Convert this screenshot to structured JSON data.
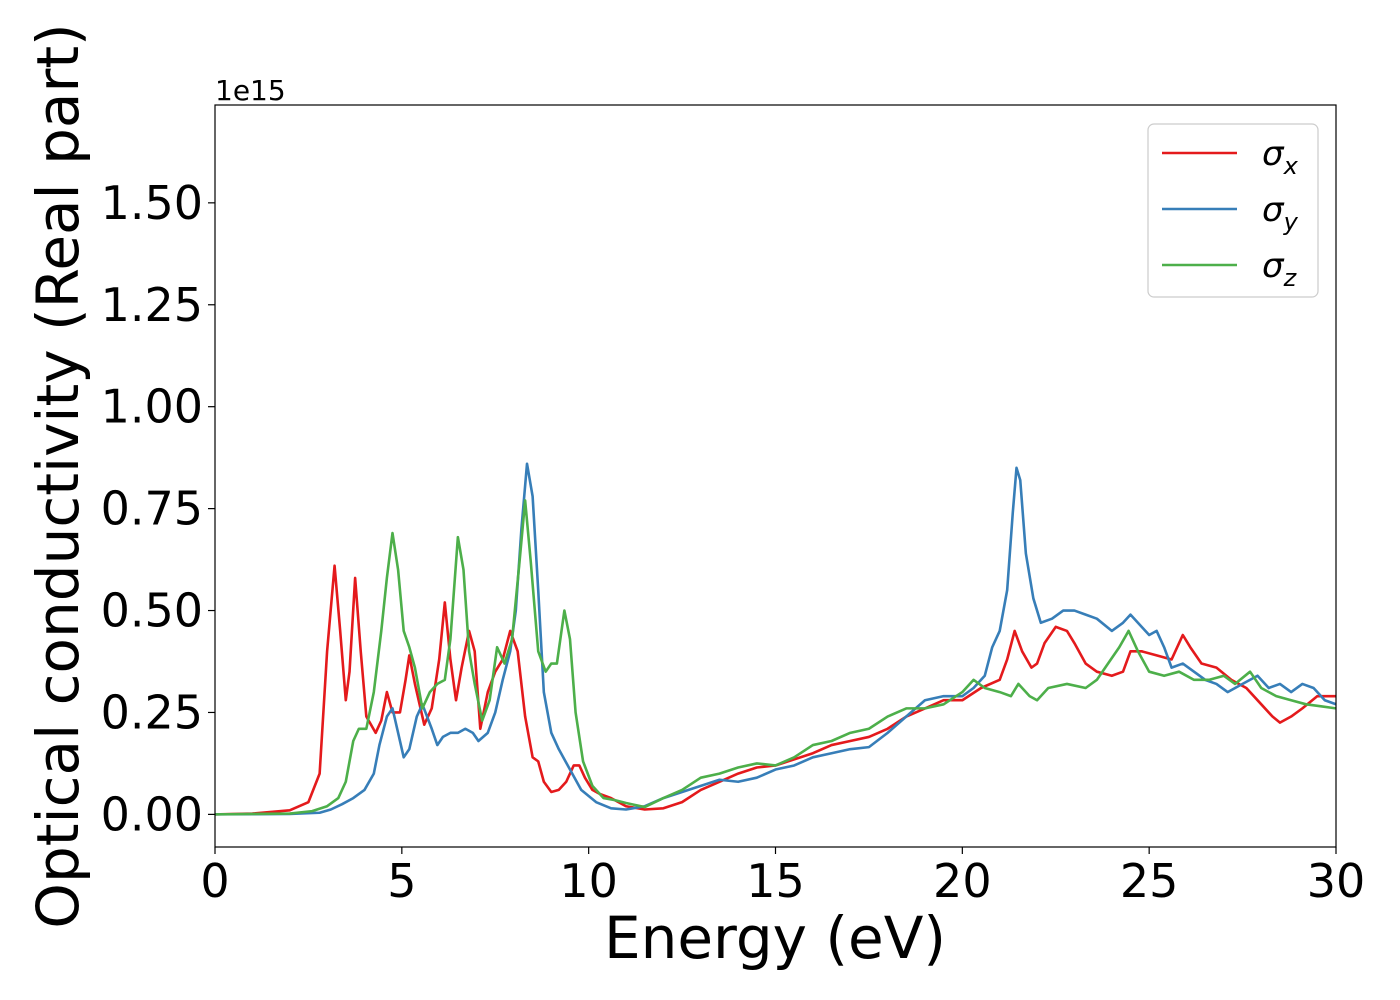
{
  "chart_data": {
    "type": "line",
    "title": "",
    "xlabel": "Energy (eV)",
    "ylabel": "Optical conductivity (Real part)",
    "y_offset_text": "1e15",
    "xlim": [
      0,
      30
    ],
    "ylim": [
      -0.08,
      1.74
    ],
    "x_ticks": [
      0,
      5,
      10,
      15,
      20,
      25,
      30
    ],
    "x_tick_labels": [
      "0",
      "5",
      "10",
      "15",
      "20",
      "25",
      "30"
    ],
    "y_ticks": [
      0,
      0.25,
      0.5,
      0.75,
      1.0,
      1.25,
      1.5
    ],
    "y_tick_labels": [
      "0.00",
      "0.25",
      "0.50",
      "0.75",
      "1.00",
      "1.25",
      "1.50"
    ],
    "grid": false,
    "legend_position": "top-right",
    "series": [
      {
        "name": "σx",
        "symbol": "σ",
        "subscript": "x",
        "color": "#e41a1c",
        "points": [
          [
            0,
            0
          ],
          [
            1,
            0.002
          ],
          [
            2,
            0.01
          ],
          [
            2.5,
            0.03
          ],
          [
            2.8,
            0.1
          ],
          [
            3.0,
            0.4
          ],
          [
            3.2,
            0.61
          ],
          [
            3.35,
            0.45
          ],
          [
            3.5,
            0.28
          ],
          [
            3.6,
            0.35
          ],
          [
            3.75,
            0.58
          ],
          [
            3.9,
            0.4
          ],
          [
            4.05,
            0.24
          ],
          [
            4.3,
            0.2
          ],
          [
            4.45,
            0.23
          ],
          [
            4.6,
            0.3
          ],
          [
            4.75,
            0.25
          ],
          [
            4.95,
            0.25
          ],
          [
            5.1,
            0.33
          ],
          [
            5.2,
            0.39
          ],
          [
            5.35,
            0.32
          ],
          [
            5.6,
            0.22
          ],
          [
            5.8,
            0.26
          ],
          [
            6.0,
            0.38
          ],
          [
            6.15,
            0.52
          ],
          [
            6.3,
            0.38
          ],
          [
            6.45,
            0.28
          ],
          [
            6.6,
            0.36
          ],
          [
            6.8,
            0.45
          ],
          [
            6.95,
            0.4
          ],
          [
            7.1,
            0.21
          ],
          [
            7.3,
            0.3
          ],
          [
            7.5,
            0.35
          ],
          [
            7.7,
            0.38
          ],
          [
            7.9,
            0.45
          ],
          [
            8.1,
            0.4
          ],
          [
            8.3,
            0.24
          ],
          [
            8.5,
            0.14
          ],
          [
            8.65,
            0.13
          ],
          [
            8.8,
            0.08
          ],
          [
            9.0,
            0.055
          ],
          [
            9.2,
            0.06
          ],
          [
            9.4,
            0.08
          ],
          [
            9.6,
            0.12
          ],
          [
            9.75,
            0.12
          ],
          [
            9.9,
            0.09
          ],
          [
            10.1,
            0.06
          ],
          [
            10.3,
            0.05
          ],
          [
            10.6,
            0.04
          ],
          [
            11.0,
            0.02
          ],
          [
            11.5,
            0.012
          ],
          [
            12.0,
            0.015
          ],
          [
            12.5,
            0.03
          ],
          [
            13.0,
            0.06
          ],
          [
            13.5,
            0.08
          ],
          [
            14.0,
            0.1
          ],
          [
            14.5,
            0.115
          ],
          [
            15.0,
            0.12
          ],
          [
            15.5,
            0.135
          ],
          [
            16.0,
            0.15
          ],
          [
            16.5,
            0.17
          ],
          [
            17.0,
            0.18
          ],
          [
            17.5,
            0.19
          ],
          [
            18.0,
            0.21
          ],
          [
            18.5,
            0.24
          ],
          [
            19.0,
            0.26
          ],
          [
            19.5,
            0.28
          ],
          [
            20.0,
            0.28
          ],
          [
            20.5,
            0.31
          ],
          [
            21.0,
            0.33
          ],
          [
            21.2,
            0.38
          ],
          [
            21.4,
            0.45
          ],
          [
            21.6,
            0.4
          ],
          [
            21.85,
            0.36
          ],
          [
            22.0,
            0.37
          ],
          [
            22.2,
            0.42
          ],
          [
            22.5,
            0.46
          ],
          [
            22.8,
            0.45
          ],
          [
            23.0,
            0.42
          ],
          [
            23.3,
            0.37
          ],
          [
            23.6,
            0.35
          ],
          [
            24.0,
            0.34
          ],
          [
            24.3,
            0.35
          ],
          [
            24.5,
            0.4
          ],
          [
            24.8,
            0.4
          ],
          [
            25.2,
            0.39
          ],
          [
            25.6,
            0.38
          ],
          [
            25.9,
            0.44
          ],
          [
            26.1,
            0.41
          ],
          [
            26.4,
            0.37
          ],
          [
            26.8,
            0.36
          ],
          [
            27.2,
            0.33
          ],
          [
            27.6,
            0.31
          ],
          [
            28.0,
            0.27
          ],
          [
            28.3,
            0.24
          ],
          [
            28.5,
            0.225
          ],
          [
            28.8,
            0.24
          ],
          [
            29.1,
            0.26
          ],
          [
            29.5,
            0.29
          ],
          [
            30.0,
            0.29
          ]
        ]
      },
      {
        "name": "σy",
        "symbol": "σ",
        "subscript": "y",
        "color": "#377eb8",
        "points": [
          [
            0,
            0
          ],
          [
            2,
            0.001
          ],
          [
            2.8,
            0.004
          ],
          [
            3.1,
            0.012
          ],
          [
            3.4,
            0.025
          ],
          [
            3.7,
            0.04
          ],
          [
            4.0,
            0.06
          ],
          [
            4.25,
            0.1
          ],
          [
            4.4,
            0.17
          ],
          [
            4.6,
            0.24
          ],
          [
            4.75,
            0.26
          ],
          [
            4.9,
            0.2
          ],
          [
            5.05,
            0.14
          ],
          [
            5.2,
            0.16
          ],
          [
            5.4,
            0.24
          ],
          [
            5.55,
            0.27
          ],
          [
            5.8,
            0.21
          ],
          [
            5.95,
            0.17
          ],
          [
            6.1,
            0.19
          ],
          [
            6.3,
            0.2
          ],
          [
            6.5,
            0.2
          ],
          [
            6.7,
            0.21
          ],
          [
            6.9,
            0.2
          ],
          [
            7.05,
            0.18
          ],
          [
            7.3,
            0.2
          ],
          [
            7.5,
            0.25
          ],
          [
            7.7,
            0.33
          ],
          [
            7.9,
            0.4
          ],
          [
            8.05,
            0.5
          ],
          [
            8.2,
            0.7
          ],
          [
            8.35,
            0.86
          ],
          [
            8.5,
            0.78
          ],
          [
            8.65,
            0.55
          ],
          [
            8.8,
            0.3
          ],
          [
            9.0,
            0.2
          ],
          [
            9.2,
            0.16
          ],
          [
            9.5,
            0.11
          ],
          [
            9.8,
            0.06
          ],
          [
            10.2,
            0.03
          ],
          [
            10.6,
            0.015
          ],
          [
            11.0,
            0.012
          ],
          [
            11.5,
            0.02
          ],
          [
            12.0,
            0.04
          ],
          [
            12.5,
            0.055
          ],
          [
            13.0,
            0.07
          ],
          [
            13.5,
            0.085
          ],
          [
            14.0,
            0.08
          ],
          [
            14.5,
            0.09
          ],
          [
            15.0,
            0.11
          ],
          [
            15.5,
            0.12
          ],
          [
            16.0,
            0.14
          ],
          [
            16.5,
            0.15
          ],
          [
            17.0,
            0.16
          ],
          [
            17.5,
            0.165
          ],
          [
            18.0,
            0.2
          ],
          [
            18.5,
            0.24
          ],
          [
            19.0,
            0.28
          ],
          [
            19.5,
            0.29
          ],
          [
            20.0,
            0.29
          ],
          [
            20.3,
            0.31
          ],
          [
            20.6,
            0.34
          ],
          [
            20.8,
            0.41
          ],
          [
            21.0,
            0.45
          ],
          [
            21.2,
            0.55
          ],
          [
            21.35,
            0.74
          ],
          [
            21.45,
            0.85
          ],
          [
            21.55,
            0.82
          ],
          [
            21.7,
            0.64
          ],
          [
            21.9,
            0.53
          ],
          [
            22.1,
            0.47
          ],
          [
            22.4,
            0.48
          ],
          [
            22.7,
            0.5
          ],
          [
            23.0,
            0.5
          ],
          [
            23.3,
            0.49
          ],
          [
            23.6,
            0.48
          ],
          [
            24.0,
            0.45
          ],
          [
            24.3,
            0.47
          ],
          [
            24.5,
            0.49
          ],
          [
            24.8,
            0.46
          ],
          [
            25.0,
            0.44
          ],
          [
            25.2,
            0.45
          ],
          [
            25.4,
            0.41
          ],
          [
            25.6,
            0.36
          ],
          [
            25.9,
            0.37
          ],
          [
            26.2,
            0.35
          ],
          [
            26.5,
            0.33
          ],
          [
            26.8,
            0.32
          ],
          [
            27.1,
            0.3
          ],
          [
            27.5,
            0.32
          ],
          [
            27.9,
            0.34
          ],
          [
            28.2,
            0.31
          ],
          [
            28.5,
            0.32
          ],
          [
            28.8,
            0.3
          ],
          [
            29.1,
            0.32
          ],
          [
            29.4,
            0.31
          ],
          [
            29.7,
            0.28
          ],
          [
            30.0,
            0.27
          ]
        ]
      },
      {
        "name": "σz",
        "symbol": "σ",
        "subscript": "z",
        "color": "#4daf4a",
        "points": [
          [
            0,
            0
          ],
          [
            2.0,
            0.002
          ],
          [
            2.6,
            0.008
          ],
          [
            3.0,
            0.02
          ],
          [
            3.3,
            0.04
          ],
          [
            3.5,
            0.08
          ],
          [
            3.7,
            0.18
          ],
          [
            3.85,
            0.21
          ],
          [
            4.05,
            0.21
          ],
          [
            4.25,
            0.3
          ],
          [
            4.45,
            0.45
          ],
          [
            4.6,
            0.58
          ],
          [
            4.75,
            0.69
          ],
          [
            4.9,
            0.6
          ],
          [
            5.05,
            0.45
          ],
          [
            5.2,
            0.41
          ],
          [
            5.35,
            0.36
          ],
          [
            5.55,
            0.26
          ],
          [
            5.75,
            0.3
          ],
          [
            5.95,
            0.32
          ],
          [
            6.15,
            0.33
          ],
          [
            6.3,
            0.43
          ],
          [
            6.5,
            0.68
          ],
          [
            6.65,
            0.6
          ],
          [
            6.8,
            0.4
          ],
          [
            6.95,
            0.32
          ],
          [
            7.15,
            0.23
          ],
          [
            7.35,
            0.28
          ],
          [
            7.55,
            0.41
          ],
          [
            7.75,
            0.37
          ],
          [
            7.95,
            0.43
          ],
          [
            8.15,
            0.62
          ],
          [
            8.3,
            0.77
          ],
          [
            8.45,
            0.62
          ],
          [
            8.65,
            0.4
          ],
          [
            8.85,
            0.35
          ],
          [
            9.0,
            0.37
          ],
          [
            9.15,
            0.37
          ],
          [
            9.35,
            0.5
          ],
          [
            9.5,
            0.43
          ],
          [
            9.65,
            0.25
          ],
          [
            9.85,
            0.13
          ],
          [
            10.1,
            0.07
          ],
          [
            10.4,
            0.04
          ],
          [
            10.7,
            0.035
          ],
          [
            11.0,
            0.028
          ],
          [
            11.5,
            0.018
          ],
          [
            12.0,
            0.04
          ],
          [
            12.5,
            0.06
          ],
          [
            13.0,
            0.09
          ],
          [
            13.5,
            0.1
          ],
          [
            14.0,
            0.115
          ],
          [
            14.5,
            0.125
          ],
          [
            15.0,
            0.12
          ],
          [
            15.5,
            0.14
          ],
          [
            16.0,
            0.17
          ],
          [
            16.5,
            0.18
          ],
          [
            17.0,
            0.2
          ],
          [
            17.5,
            0.21
          ],
          [
            18.0,
            0.24
          ],
          [
            18.5,
            0.26
          ],
          [
            19.0,
            0.26
          ],
          [
            19.5,
            0.27
          ],
          [
            20.0,
            0.3
          ],
          [
            20.3,
            0.33
          ],
          [
            20.6,
            0.31
          ],
          [
            21.0,
            0.3
          ],
          [
            21.3,
            0.29
          ],
          [
            21.5,
            0.32
          ],
          [
            21.8,
            0.29
          ],
          [
            22.0,
            0.28
          ],
          [
            22.3,
            0.31
          ],
          [
            22.8,
            0.32
          ],
          [
            23.3,
            0.31
          ],
          [
            23.6,
            0.33
          ],
          [
            23.9,
            0.37
          ],
          [
            24.2,
            0.41
          ],
          [
            24.45,
            0.45
          ],
          [
            24.7,
            0.4
          ],
          [
            25.0,
            0.35
          ],
          [
            25.4,
            0.34
          ],
          [
            25.8,
            0.35
          ],
          [
            26.2,
            0.33
          ],
          [
            26.6,
            0.33
          ],
          [
            27.0,
            0.34
          ],
          [
            27.3,
            0.32
          ],
          [
            27.7,
            0.35
          ],
          [
            28.0,
            0.31
          ],
          [
            28.4,
            0.29
          ],
          [
            28.8,
            0.28
          ],
          [
            29.2,
            0.27
          ],
          [
            29.6,
            0.265
          ],
          [
            30.0,
            0.26
          ]
        ]
      }
    ]
  }
}
